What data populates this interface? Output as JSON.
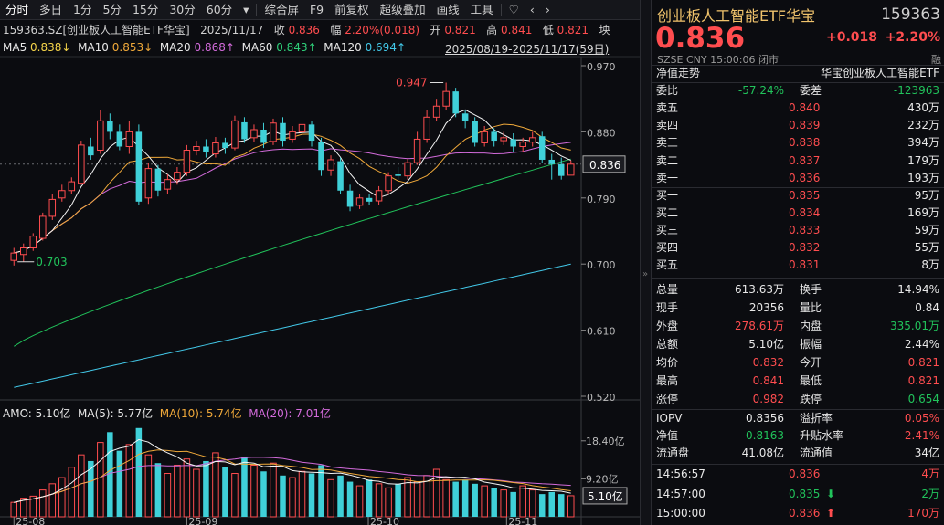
{
  "toolbar": {
    "items": [
      "分时",
      "多日",
      "1分",
      "5分",
      "15分",
      "30分",
      "60分",
      "▾",
      "综合屏",
      "F9",
      "前复权",
      "超级叠加",
      "画线",
      "工具",
      "♡",
      "‹",
      "›"
    ]
  },
  "header": {
    "code_name": "159363.SZ[创业板人工智能ETF华宝]",
    "date": "2025/11/17",
    "close_label": "收",
    "close": "0.836",
    "amp_label": "幅",
    "amp": "2.20%(0.018)",
    "open_label": "开",
    "open": "0.821",
    "high_label": "高",
    "high": "0.841",
    "low_label": "低",
    "low": "0.821",
    "extra": "坱",
    "range": "2025/08/19-2025/11/17(59日)"
  },
  "ma": {
    "ma5_label": "MA5",
    "ma5": "0.838↓",
    "ma10_label": "MA10",
    "ma10": "0.853↓",
    "ma20_label": "MA20",
    "ma20": "0.868↑",
    "ma60_label": "MA60",
    "ma60": "0.843↑",
    "ma120_label": "MA120",
    "ma120": "0.694↑"
  },
  "volume_info": {
    "amo": "AMO: 5.10亿",
    "ma5": "MA(5): 5.77亿",
    "ma10": "MA(10): 5.74亿",
    "ma20": "MA(20): 7.01亿"
  },
  "price_axis": [
    "0.970",
    "0.880",
    "0.836",
    "0.790",
    "0.700",
    "0.610",
    "0.520"
  ],
  "vol_axis": [
    "18.40亿",
    "9.20亿",
    "5.10亿"
  ],
  "date_axis": [
    "25-08",
    "25-09",
    "25-10",
    "25-11"
  ],
  "annotations": {
    "high": "0.947",
    "low": "0.703"
  },
  "chart_data": {
    "type": "candlestick",
    "ylim": [
      0.52,
      0.97
    ],
    "candles": [
      [
        0.705,
        0.715,
        0.722,
        0.698
      ],
      [
        0.713,
        0.722,
        0.728,
        0.703
      ],
      [
        0.722,
        0.738,
        0.742,
        0.718
      ],
      [
        0.735,
        0.765,
        0.77,
        0.732
      ],
      [
        0.765,
        0.788,
        0.795,
        0.76
      ],
      [
        0.79,
        0.8,
        0.808,
        0.785
      ],
      [
        0.8,
        0.812,
        0.818,
        0.795
      ],
      [
        0.81,
        0.862,
        0.868,
        0.808
      ],
      [
        0.86,
        0.848,
        0.872,
        0.842
      ],
      [
        0.855,
        0.895,
        0.91,
        0.85
      ],
      [
        0.895,
        0.88,
        0.905,
        0.87
      ],
      [
        0.88,
        0.86,
        0.89,
        0.855
      ],
      [
        0.86,
        0.88,
        0.895,
        0.85
      ],
      [
        0.88,
        0.785,
        0.89,
        0.78
      ],
      [
        0.79,
        0.83,
        0.838,
        0.782
      ],
      [
        0.83,
        0.8,
        0.835,
        0.792
      ],
      [
        0.802,
        0.815,
        0.822,
        0.795
      ],
      [
        0.815,
        0.825,
        0.832,
        0.808
      ],
      [
        0.825,
        0.855,
        0.862,
        0.82
      ],
      [
        0.855,
        0.86,
        0.868,
        0.848
      ],
      [
        0.86,
        0.852,
        0.87,
        0.845
      ],
      [
        0.85,
        0.865,
        0.873,
        0.845
      ],
      [
        0.865,
        0.858,
        0.872,
        0.85
      ],
      [
        0.858,
        0.895,
        0.902,
        0.855
      ],
      [
        0.893,
        0.87,
        0.9,
        0.865
      ],
      [
        0.872,
        0.883,
        0.89,
        0.866
      ],
      [
        0.883,
        0.865,
        0.892,
        0.858
      ],
      [
        0.867,
        0.892,
        0.898,
        0.862
      ],
      [
        0.892,
        0.868,
        0.9,
        0.86
      ],
      [
        0.87,
        0.88,
        0.888,
        0.865
      ],
      [
        0.88,
        0.89,
        0.897,
        0.872
      ],
      [
        0.89,
        0.868,
        0.895,
        0.86
      ],
      [
        0.866,
        0.828,
        0.872,
        0.82
      ],
      [
        0.828,
        0.842,
        0.848,
        0.82
      ],
      [
        0.84,
        0.8,
        0.845,
        0.795
      ],
      [
        0.8,
        0.778,
        0.808,
        0.772
      ],
      [
        0.78,
        0.79,
        0.795,
        0.775
      ],
      [
        0.79,
        0.785,
        0.795,
        0.78
      ],
      [
        0.786,
        0.8,
        0.806,
        0.78
      ],
      [
        0.8,
        0.82,
        0.825,
        0.795
      ],
      [
        0.822,
        0.82,
        0.832,
        0.815
      ],
      [
        0.82,
        0.838,
        0.843,
        0.815
      ],
      [
        0.838,
        0.87,
        0.88,
        0.835
      ],
      [
        0.87,
        0.9,
        0.91,
        0.865
      ],
      [
        0.9,
        0.915,
        0.925,
        0.895
      ],
      [
        0.915,
        0.935,
        0.947,
        0.91
      ],
      [
        0.935,
        0.905,
        0.94,
        0.9
      ],
      [
        0.905,
        0.895,
        0.91,
        0.885
      ],
      [
        0.895,
        0.865,
        0.9,
        0.86
      ],
      [
        0.865,
        0.88,
        0.888,
        0.86
      ],
      [
        0.88,
        0.868,
        0.885,
        0.86
      ],
      [
        0.868,
        0.872,
        0.88,
        0.862
      ],
      [
        0.87,
        0.86,
        0.878,
        0.852
      ],
      [
        0.86,
        0.866,
        0.872,
        0.852
      ],
      [
        0.866,
        0.872,
        0.88,
        0.86
      ],
      [
        0.874,
        0.842,
        0.88,
        0.838
      ],
      [
        0.842,
        0.836,
        0.85,
        0.815
      ],
      [
        0.836,
        0.82,
        0.845,
        0.815
      ],
      [
        0.821,
        0.836,
        0.841,
        0.821
      ]
    ],
    "volumes": [
      3.5,
      4.5,
      5.0,
      6.5,
      8.0,
      9.5,
      12.0,
      15.0,
      13.5,
      18.0,
      20.5,
      16.0,
      17.5,
      21.5,
      15.0,
      13.0,
      10.5,
      12.5,
      14.0,
      11.5,
      13.5,
      15.5,
      12.0,
      10.5,
      14.5,
      12.5,
      11.0,
      13.0,
      10.0,
      9.5,
      11.0,
      10.5,
      12.5,
      9.0,
      10.0,
      8.5,
      7.5,
      9.0,
      8.0,
      7.0,
      8.0,
      9.5,
      8.5,
      10.0,
      11.5,
      9.0,
      8.5,
      9.0,
      8.0,
      7.5,
      7.0,
      6.5,
      6.0,
      7.5,
      6.5,
      5.5,
      6.0,
      5.5,
      5.1
    ]
  },
  "quote": {
    "name": "创业板人工智能ETF华宝",
    "code": "159363",
    "price": "0.836",
    "change": "+0.018",
    "pct": "+2.20%",
    "meta": "SZSE  CNY  15:00:06  闭市",
    "meta_x": "融"
  },
  "nav_tab": {
    "label": "净值走势",
    "name": "华宝创业板人工智能ETF"
  },
  "ratio": {
    "wb_label": "委比",
    "wb": "-57.24%",
    "wc_label": "委差",
    "wc": "-123963"
  },
  "asks": [
    {
      "label": "卖五",
      "price": "0.840",
      "vol": "430万"
    },
    {
      "label": "卖四",
      "price": "0.839",
      "vol": "232万"
    },
    {
      "label": "卖三",
      "price": "0.838",
      "vol": "394万"
    },
    {
      "label": "卖二",
      "price": "0.837",
      "vol": "179万"
    },
    {
      "label": "卖一",
      "price": "0.836",
      "vol": "193万"
    }
  ],
  "bids": [
    {
      "label": "买一",
      "price": "0.835",
      "vol": "95万"
    },
    {
      "label": "买二",
      "price": "0.834",
      "vol": "169万"
    },
    {
      "label": "买三",
      "price": "0.833",
      "vol": "59万"
    },
    {
      "label": "买四",
      "price": "0.832",
      "vol": "55万"
    },
    {
      "label": "买五",
      "price": "0.831",
      "vol": "8万"
    }
  ],
  "stats": [
    {
      "l1": "总量",
      "v1": "613.63万",
      "c1": "w",
      "l2": "换手",
      "v2": "14.94%",
      "c2": "w"
    },
    {
      "l1": "现手",
      "v1": "20356",
      "c1": "w",
      "l2": "量比",
      "v2": "0.84",
      "c2": "w"
    },
    {
      "l1": "外盘",
      "v1": "278.61万",
      "c1": "r",
      "l2": "内盘",
      "v2": "335.01万",
      "c2": "g"
    },
    {
      "l1": "总额",
      "v1": "5.10亿",
      "c1": "w",
      "l2": "振幅",
      "v2": "2.44%",
      "c2": "w"
    },
    {
      "l1": "均价",
      "v1": "0.832",
      "c1": "r",
      "l2": "今开",
      "v2": "0.821",
      "c2": "r"
    },
    {
      "l1": "最高",
      "v1": "0.841",
      "c1": "r",
      "l2": "最低",
      "v2": "0.821",
      "c2": "r"
    },
    {
      "l1": "涨停",
      "v1": "0.982",
      "c1": "r",
      "l2": "跌停",
      "v2": "0.654",
      "c2": "g"
    }
  ],
  "stats2": [
    {
      "l1": "IOPV",
      "v1": "0.8356",
      "c1": "w",
      "l2": "溢折率",
      "v2": "0.05%",
      "c2": "r"
    },
    {
      "l1": "净值",
      "v1": "0.8163",
      "c1": "g",
      "l2": "升贴水率",
      "v2": "2.41%",
      "c2": "r"
    },
    {
      "l1": "流通盘",
      "v1": "41.08亿",
      "c1": "w",
      "l2": "流通值",
      "v2": "34亿",
      "c2": "w"
    }
  ],
  "ticks": [
    {
      "time": "14:56:57",
      "price": "0.836",
      "arrow": "",
      "vol": "4万",
      "c": "r"
    },
    {
      "time": "14:57:00",
      "price": "0.835",
      "arrow": "⬇",
      "vol": "2万",
      "c": "g"
    },
    {
      "time": "15:00:00",
      "price": "0.836",
      "arrow": "⬆",
      "vol": "170万",
      "c": "r"
    }
  ]
}
